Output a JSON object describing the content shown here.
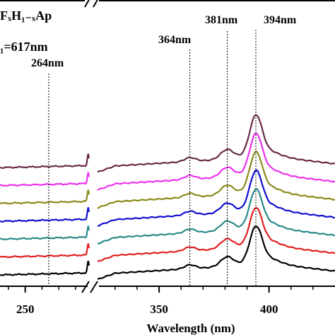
{
  "chart_data": {
    "type": "line",
    "title_line1": "FₓH₁₋ₓAp",
    "title_line2": "₁=617nm",
    "xlabel": "Wavelength (nm)",
    "ylabel": "",
    "x_ticks": [
      "250",
      "350",
      "400"
    ],
    "annotations": [
      "264nm",
      "364nm",
      "381nm",
      "394nm"
    ],
    "annotation_x": [
      264,
      364,
      381,
      394
    ],
    "segment_left_xlim": [
      235,
      288
    ],
    "segment_right_xlim": [
      322,
      430
    ],
    "series": [
      {
        "color": "#000000",
        "offset": 0.0
      },
      {
        "color": "#e02020",
        "offset": 0.55
      },
      {
        "color": "#2a8a8a",
        "offset": 1.1
      },
      {
        "color": "#1010d0",
        "offset": 1.65
      },
      {
        "color": "#8a8a1a",
        "offset": 2.2
      },
      {
        "color": "#ee30ee",
        "offset": 2.75
      },
      {
        "color": "#6a2a4a",
        "offset": 3.3
      }
    ]
  }
}
